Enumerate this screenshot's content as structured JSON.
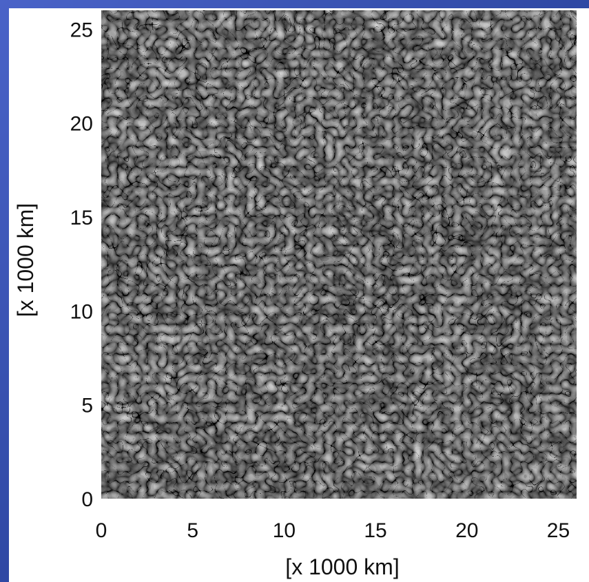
{
  "chart_data": {
    "type": "heatmap",
    "title": "",
    "xlabel": "[x 1000 km]",
    "ylabel": "[x 1000 km]",
    "xlim": [
      0,
      26
    ],
    "ylim": [
      0,
      26
    ],
    "x_ticks": [
      0,
      5,
      10,
      15,
      20,
      25
    ],
    "y_ticks": [
      0,
      5,
      10,
      15,
      20,
      25
    ],
    "colormap": "grayscale",
    "grid": false,
    "legend": "none"
  },
  "colors": {
    "background": "#2f4aa6",
    "panel": "#ffffff",
    "text": "#111111"
  }
}
